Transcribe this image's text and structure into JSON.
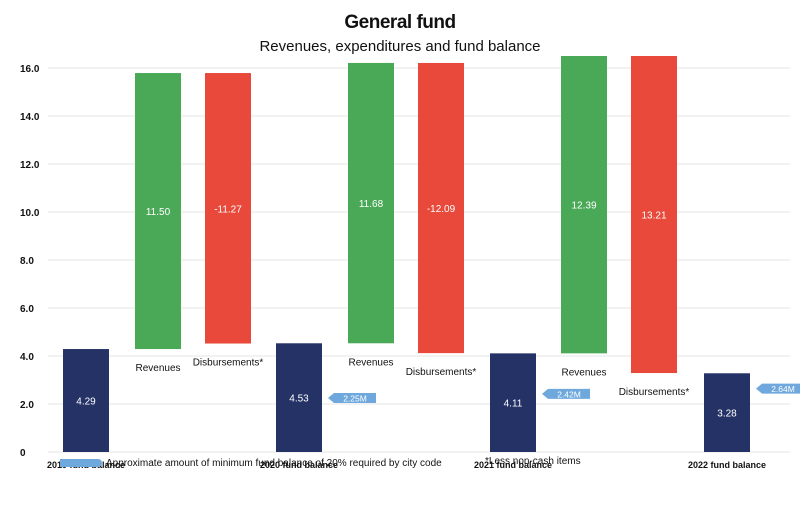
{
  "title": "General fund",
  "subtitle": "Revenues, expenditures and fund balance",
  "legend_label": "Approximate amount of minimum fund balance of 20% required by city code",
  "footnote": "*Less non-cash items",
  "colors": {
    "balance": "#253266",
    "revenue": "#4aa957",
    "disbursement": "#e8493a",
    "minimum": "#6fa8dc",
    "grid": "#e6e6e6"
  },
  "chart_data": {
    "type": "bar",
    "subtype": "waterfall",
    "ylim": [
      0,
      16
    ],
    "yticks": [
      "0",
      "2.0",
      "4.0",
      "6.0",
      "8.0",
      "10.0",
      "12.0",
      "14.0",
      "16.0"
    ],
    "grid": true,
    "categories": [
      "2019 fund balance",
      "Revenues",
      "Disbursements*",
      "2020 fund balance",
      "Revenues",
      "Disbursements*",
      "2021 fund balance",
      "Revenues",
      "Disbursements*",
      "2022 fund balance"
    ],
    "bars": [
      {
        "kind": "balance",
        "label": "2019 fund balance",
        "base": 0,
        "value": 4.29,
        "display": "4.29"
      },
      {
        "kind": "revenue",
        "label": "Revenues",
        "base": 4.29,
        "value": 11.5,
        "display": "11.50"
      },
      {
        "kind": "disbursement",
        "label": "Disbursements*",
        "base": 4.52,
        "value": 11.27,
        "display": "-11.27"
      },
      {
        "kind": "balance",
        "label": "2020 fund balance",
        "base": 0,
        "value": 4.53,
        "display": "4.53",
        "minimum": 2.25,
        "minimum_label": "2.25M"
      },
      {
        "kind": "revenue",
        "label": "Revenues",
        "base": 4.53,
        "value": 11.68,
        "display": "11.68"
      },
      {
        "kind": "disbursement",
        "label": "Disbursements*",
        "base": 4.12,
        "value": 12.09,
        "display": "-12.09"
      },
      {
        "kind": "balance",
        "label": "2021 fund balance",
        "base": 0,
        "value": 4.11,
        "display": "4.11",
        "minimum": 2.42,
        "minimum_label": "2.42M"
      },
      {
        "kind": "revenue",
        "label": "Revenues",
        "base": 4.11,
        "value": 12.39,
        "display": "12.39"
      },
      {
        "kind": "disbursement",
        "label": "Disbursements*",
        "base": 3.29,
        "value": 13.21,
        "display": "13.21"
      },
      {
        "kind": "balance",
        "label": "2022 fund balance",
        "base": 0,
        "value": 3.28,
        "display": "3.28",
        "minimum": 2.64,
        "minimum_label": "2.64M"
      }
    ]
  }
}
